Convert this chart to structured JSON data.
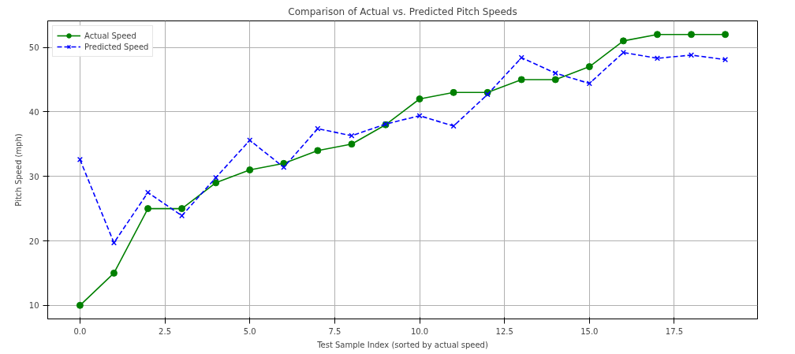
{
  "chart_data": {
    "type": "line",
    "title": "Comparison of Actual vs. Predicted Pitch Speeds",
    "xlabel": "Test Sample Index (sorted by actual speed)",
    "ylabel": "Pitch Speed (mph)",
    "x": [
      0,
      1,
      2,
      3,
      4,
      5,
      6,
      7,
      8,
      9,
      10,
      11,
      12,
      13,
      14,
      15,
      16,
      17,
      18,
      19
    ],
    "series": [
      {
        "name": "Actual Speed",
        "color": "#008000",
        "marker": "circle",
        "line_style": "solid",
        "values": [
          10,
          15,
          25,
          25,
          29,
          31,
          32,
          34,
          35,
          38,
          42,
          43,
          43,
          45,
          45,
          47,
          51,
          52,
          52,
          52
        ]
      },
      {
        "name": "Predicted Speed",
        "color": "#0000ff",
        "marker": "cross",
        "line_style": "dashed",
        "values": [
          32.6,
          19.7,
          27.5,
          23.9,
          29.8,
          35.6,
          31.4,
          37.4,
          36.3,
          38.1,
          39.4,
          37.8,
          42.7,
          48.4,
          46.0,
          44.4,
          49.2,
          48.3,
          48.8,
          48.1
        ]
      }
    ],
    "xlim": [
      -0.95,
      19.95
    ],
    "ylim": [
      7.9,
      54.1
    ],
    "xticks": [
      {
        "value": 0,
        "label": "0.0"
      },
      {
        "value": 2.5,
        "label": "2.5"
      },
      {
        "value": 5,
        "label": "5.0"
      },
      {
        "value": 7.5,
        "label": "7.5"
      },
      {
        "value": 10,
        "label": "10.0"
      },
      {
        "value": 12.5,
        "label": "12.5"
      },
      {
        "value": 15,
        "label": "15.0"
      },
      {
        "value": 17.5,
        "label": "17.5"
      }
    ],
    "yticks": [
      10,
      20,
      30,
      40,
      50
    ],
    "grid": true,
    "legend": "top left"
  }
}
